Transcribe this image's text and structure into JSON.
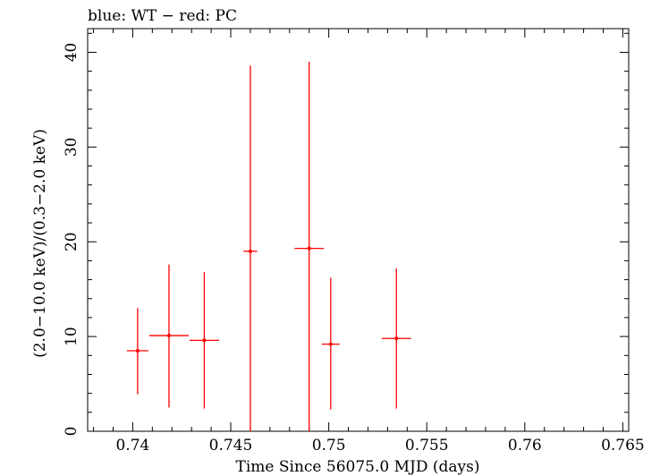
{
  "chart_data": {
    "type": "scatter",
    "title": "blue: WT − red: PC",
    "xlabel": "Time Since 56075.0 MJD (days)",
    "ylabel": "(2.0−10.0 keV)/(0.3−2.0 keV)",
    "xlim": [
      0.7377,
      0.7653
    ],
    "ylim": [
      0,
      42.5
    ],
    "x_ticks": [
      0.74,
      0.745,
      0.75,
      0.755,
      0.76,
      0.765
    ],
    "x_tick_labels": [
      "0.74",
      "0.745",
      "0.75",
      "0.755",
      "0.76",
      "0.765"
    ],
    "y_ticks": [
      0,
      10,
      20,
      30,
      40
    ],
    "y_tick_labels": [
      "0",
      "10",
      "20",
      "30",
      "40"
    ],
    "grid": false,
    "series": [
      {
        "name": "PC",
        "color": "#ff0000",
        "points": [
          {
            "x": 0.74025,
            "xerr": 0.00055,
            "y": 8.5,
            "y_low": 3.9,
            "y_high": 13.0
          },
          {
            "x": 0.74185,
            "xerr": 0.001,
            "y": 10.1,
            "y_low": 2.5,
            "y_high": 17.6
          },
          {
            "x": 0.74365,
            "xerr": 0.00075,
            "y": 9.6,
            "y_low": 2.4,
            "y_high": 16.8
          },
          {
            "x": 0.746,
            "xerr": 0.00035,
            "y": 19.0,
            "y_low": 0.0,
            "y_high": 38.6
          },
          {
            "x": 0.749,
            "xerr": 0.00075,
            "y": 19.3,
            "y_low": 0.0,
            "y_high": 39.0
          },
          {
            "x": 0.7501,
            "xerr": 0.00045,
            "y": 9.2,
            "y_low": 2.3,
            "y_high": 16.2
          },
          {
            "x": 0.75345,
            "xerr": 0.00075,
            "y": 9.8,
            "y_low": 2.4,
            "y_high": 17.2
          }
        ]
      }
    ]
  }
}
